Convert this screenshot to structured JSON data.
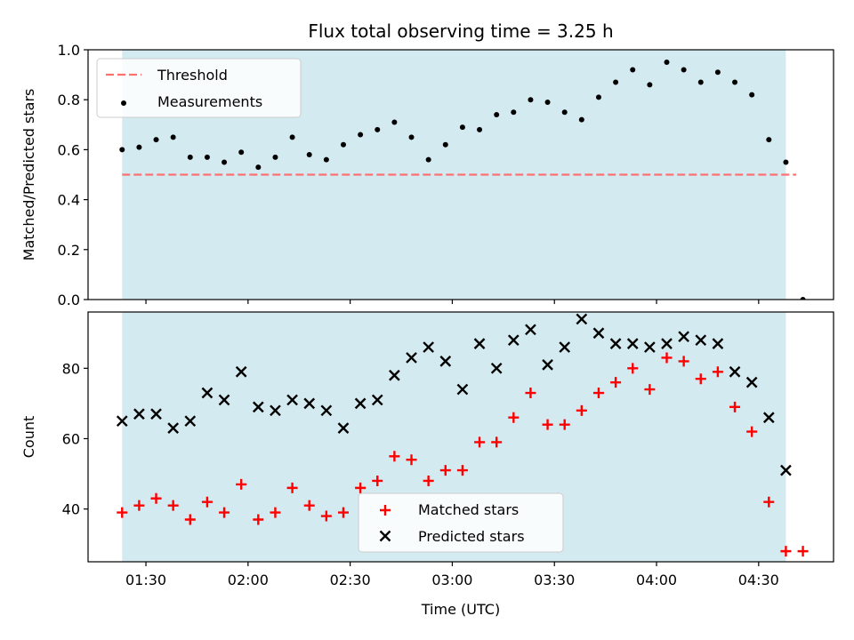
{
  "chart_data": [
    {
      "type": "scatter",
      "title": "Flux total observing time = 3.25 h",
      "xlabel": "",
      "ylabel": "Matched/Predicted stars",
      "ylim": [
        0,
        1
      ],
      "yticks": [
        "0.0",
        "0.2",
        "0.4",
        "0.6",
        "0.8",
        "1.0"
      ],
      "xlim": [
        "01:13",
        "04:52"
      ],
      "xticks": [
        "01:30",
        "02:00",
        "02:30",
        "03:00",
        "03:30",
        "04:00",
        "04:30"
      ],
      "shaded_span": [
        "01:23",
        "04:38"
      ],
      "shade_color": "#d3eaf0",
      "threshold": {
        "name": "Threshold",
        "value": 0.5,
        "color": "#ff7070",
        "style": "dashed"
      },
      "series": [
        {
          "name": "Measurements",
          "marker": "dot",
          "color": "#000000",
          "x": [
            "01:23",
            "01:28",
            "01:33",
            "01:38",
            "01:43",
            "01:48",
            "01:53",
            "01:58",
            "02:03",
            "02:08",
            "02:13",
            "02:18",
            "02:23",
            "02:28",
            "02:33",
            "02:38",
            "02:43",
            "02:48",
            "02:53",
            "02:58",
            "03:03",
            "03:08",
            "03:13",
            "03:18",
            "03:23",
            "03:28",
            "03:33",
            "03:38",
            "03:43",
            "03:48",
            "03:53",
            "03:58",
            "04:03",
            "04:08",
            "04:13",
            "04:18",
            "04:23",
            "04:28",
            "04:33",
            "04:38",
            "04:43"
          ],
          "y": [
            0.6,
            0.61,
            0.64,
            0.65,
            0.57,
            0.57,
            0.55,
            0.59,
            0.53,
            0.57,
            0.65,
            0.58,
            0.56,
            0.62,
            0.66,
            0.68,
            0.71,
            0.65,
            0.56,
            0.62,
            0.69,
            0.68,
            0.74,
            0.75,
            0.8,
            0.79,
            0.75,
            0.72,
            0.81,
            0.87,
            0.92,
            0.86,
            0.95,
            0.92,
            0.87,
            0.91,
            0.87,
            0.82,
            0.64,
            0.55,
            0.0
          ]
        }
      ],
      "legend": {
        "position": "top-left",
        "entries": [
          "Threshold",
          "Measurements"
        ]
      }
    },
    {
      "type": "scatter",
      "title": "",
      "xlabel": "Time (UTC)",
      "ylabel": "Count",
      "ylim": [
        25,
        96
      ],
      "yticks": [
        "40",
        "60",
        "80"
      ],
      "xlim": [
        "01:13",
        "04:52"
      ],
      "xticks": [
        "01:30",
        "02:00",
        "02:30",
        "03:00",
        "03:30",
        "04:00",
        "04:30"
      ],
      "shaded_span": [
        "01:23",
        "04:38"
      ],
      "shade_color": "#d3eaf0",
      "series": [
        {
          "name": "Matched stars",
          "marker": "plus",
          "color": "#ff0000",
          "x": [
            "01:23",
            "01:28",
            "01:33",
            "01:38",
            "01:43",
            "01:48",
            "01:53",
            "01:58",
            "02:03",
            "02:08",
            "02:13",
            "02:18",
            "02:23",
            "02:28",
            "02:33",
            "02:38",
            "02:43",
            "02:48",
            "02:53",
            "02:58",
            "03:03",
            "03:08",
            "03:13",
            "03:18",
            "03:23",
            "03:28",
            "03:33",
            "03:38",
            "03:43",
            "03:48",
            "03:53",
            "03:58",
            "04:03",
            "04:08",
            "04:13",
            "04:18",
            "04:23",
            "04:28",
            "04:33",
            "04:38",
            "04:43"
          ],
          "y": [
            39,
            41,
            43,
            41,
            37,
            42,
            39,
            47,
            37,
            39,
            46,
            41,
            38,
            39,
            46,
            48,
            55,
            54,
            48,
            51,
            51,
            59,
            59,
            66,
            73,
            64,
            64,
            68,
            73,
            76,
            80,
            74,
            83,
            82,
            77,
            79,
            69,
            62,
            42,
            28,
            28
          ]
        },
        {
          "name": "Predicted stars",
          "marker": "x",
          "color": "#000000",
          "x": [
            "01:23",
            "01:28",
            "01:33",
            "01:38",
            "01:43",
            "01:48",
            "01:53",
            "01:58",
            "02:03",
            "02:08",
            "02:13",
            "02:18",
            "02:23",
            "02:28",
            "02:33",
            "02:38",
            "02:43",
            "02:48",
            "02:53",
            "02:58",
            "03:03",
            "03:08",
            "03:13",
            "03:18",
            "03:23",
            "03:28",
            "03:33",
            "03:38",
            "03:43",
            "03:48",
            "03:53",
            "03:58",
            "04:03",
            "04:08",
            "04:13",
            "04:18",
            "04:23",
            "04:28",
            "04:33",
            "04:38"
          ],
          "y": [
            65,
            67,
            67,
            63,
            65,
            73,
            71,
            79,
            69,
            68,
            71,
            70,
            68,
            63,
            70,
            71,
            78,
            83,
            86,
            82,
            74,
            87,
            80,
            88,
            91,
            81,
            86,
            94,
            90,
            87,
            87,
            86,
            87,
            89,
            88,
            87,
            79,
            76,
            66,
            51
          ]
        }
      ],
      "legend": {
        "position": "lower-center",
        "entries": [
          "Matched stars",
          "Predicted stars"
        ]
      }
    }
  ]
}
